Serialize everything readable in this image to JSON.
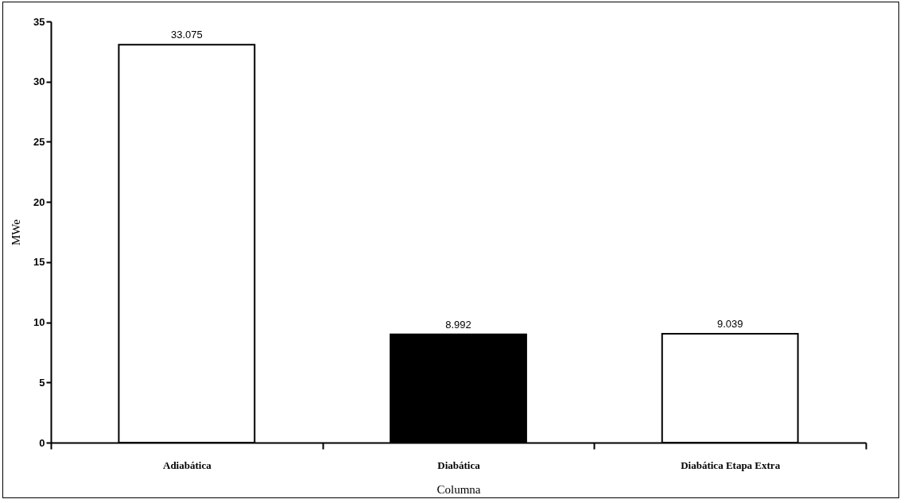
{
  "chart_data": {
    "type": "bar",
    "xlabel": "Columna",
    "ylabel": "MWe",
    "categories": [
      "Adiabática",
      "Diabática",
      "Diabática Etapa Extra"
    ],
    "values": [
      33.075,
      8.992,
      9.039
    ],
    "colors": [
      "#ffffff",
      "#000000",
      "#ffffff"
    ],
    "ylim": [
      0,
      35
    ],
    "yticks": [
      0,
      5,
      10,
      15,
      20,
      25,
      30,
      35
    ],
    "grid": false,
    "data_labels": true
  }
}
